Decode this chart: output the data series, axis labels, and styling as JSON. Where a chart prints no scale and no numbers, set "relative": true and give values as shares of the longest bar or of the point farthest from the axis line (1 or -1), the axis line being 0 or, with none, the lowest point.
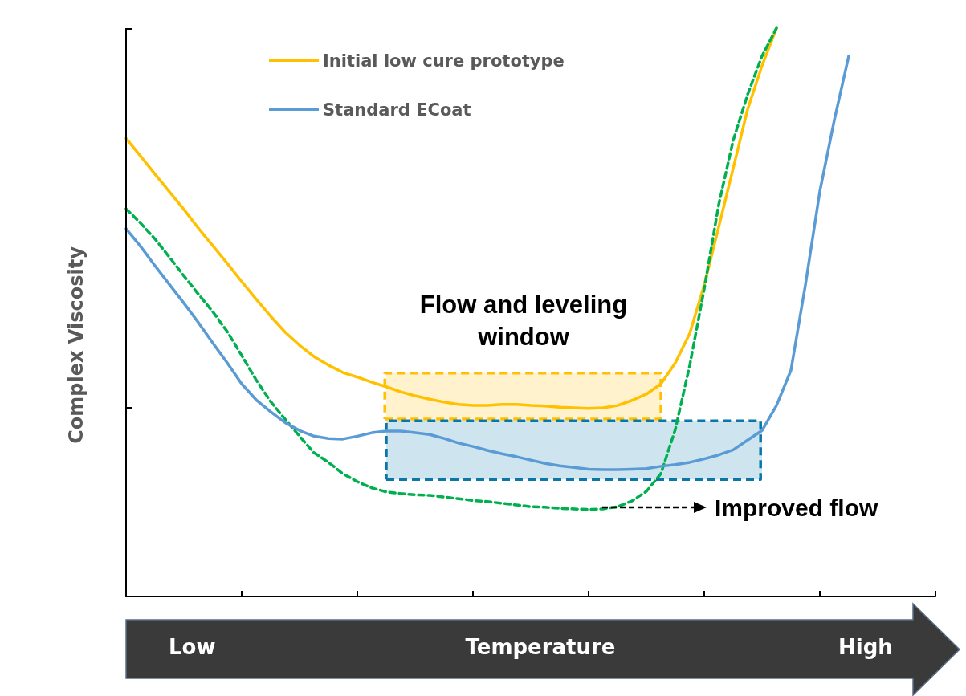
{
  "chart_data": {
    "type": "line",
    "relative": true,
    "xlabel": "Temperature",
    "ylabel": "Complex Viscosity",
    "legend": "top left",
    "line_style": "solid",
    "marker": "none",
    "categories": [
      null,
      null,
      null,
      null,
      null,
      null,
      null,
      null,
      null,
      null,
      null,
      null,
      null,
      null,
      null,
      null,
      null,
      null,
      null,
      null,
      null,
      null,
      null,
      null,
      null,
      null,
      null,
      null,
      null,
      null,
      null,
      null,
      null,
      null,
      null,
      null,
      null,
      null,
      null,
      null,
      null,
      null,
      null,
      null,
      null,
      null,
      null,
      null,
      null,
      null,
      null,
      null,
      null,
      null,
      null,
      null,
      null
    ],
    "series": [
      {
        "name": "Initial low cure prototype",
        "color": "#ffc000",
        "values": [
          0.806,
          0.775,
          0.743,
          0.712,
          0.681,
          0.648,
          0.617,
          0.586,
          0.554,
          0.523,
          0.493,
          0.465,
          0.442,
          0.422,
          0.407,
          0.394,
          0.386,
          0.377,
          0.369,
          0.36,
          0.353,
          0.347,
          0.342,
          0.338,
          0.336,
          0.336,
          0.338,
          0.338,
          0.336,
          0.335,
          0.333,
          0.332,
          0.331,
          0.332,
          0.336,
          0.345,
          0.356,
          0.374,
          0.411,
          0.463,
          0.548,
          0.65,
          0.753,
          0.857,
          0.934,
          1.0,
          null,
          null,
          null,
          null,
          null,
          null,
          null,
          null,
          null,
          null,
          null
        ]
      },
      {
        "color": "#00b050",
        "line_style": "dashed",
        "values": [
          0.682,
          0.657,
          0.629,
          0.597,
          0.564,
          0.532,
          0.501,
          0.466,
          0.424,
          0.381,
          0.343,
          0.312,
          0.282,
          0.253,
          0.236,
          0.216,
          0.202,
          0.191,
          0.184,
          0.181,
          0.179,
          0.178,
          0.175,
          0.172,
          0.169,
          0.167,
          0.164,
          0.161,
          0.158,
          0.157,
          0.155,
          0.154,
          0.153,
          0.154,
          0.158,
          0.168,
          0.185,
          0.216,
          0.294,
          0.407,
          0.541,
          0.689,
          0.802,
          0.883,
          0.951,
          1.0,
          null,
          null,
          null,
          null,
          null,
          null,
          null,
          null,
          null,
          null,
          null
        ]
      },
      {
        "name": "Standard ECoat",
        "color": "#5b9bd5",
        "values": [
          0.647,
          0.616,
          0.582,
          0.549,
          0.516,
          0.482,
          0.446,
          0.411,
          0.374,
          0.346,
          0.325,
          0.306,
          0.292,
          0.282,
          0.278,
          0.277,
          0.282,
          0.288,
          0.291,
          0.291,
          0.288,
          0.285,
          0.278,
          0.27,
          0.264,
          0.257,
          0.251,
          0.246,
          0.24,
          0.234,
          0.23,
          0.227,
          0.224,
          0.223,
          0.223,
          0.224,
          0.225,
          0.229,
          0.232,
          0.236,
          0.242,
          0.249,
          0.258,
          0.275,
          0.292,
          0.336,
          0.398,
          0.548,
          0.713,
          0.838,
          0.951,
          null,
          null,
          null,
          null,
          null,
          null
        ]
      }
    ],
    "bands": [
      {
        "axis": "y",
        "from": 0.312,
        "to": 0.393,
        "color": "#ffc000"
      },
      {
        "axis": "y",
        "from": 0.206,
        "to": 0.309,
        "color": "#0a77a8"
      }
    ],
    "annotations": [
      "Flow and leveling window",
      "Improved flow",
      "Low",
      "High"
    ]
  }
}
